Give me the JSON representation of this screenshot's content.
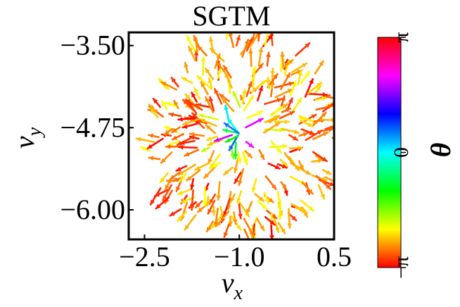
{
  "chart_data": {
    "type": "quiver",
    "title": "SGTM",
    "xlabel_main": "v",
    "xlabel_sub": "x",
    "ylabel_main": "v",
    "ylabel_sub": "y",
    "xlim": [
      -2.75,
      0.5
    ],
    "ylim": [
      -6.45,
      -3.3
    ],
    "xticks": [
      -2.5,
      -1.0,
      0.5
    ],
    "xtick_labels": [
      "−2.5",
      "−1.0",
      "0.5"
    ],
    "yticks": [
      -3.5,
      -4.75,
      -6.0
    ],
    "ytick_labels": [
      "−3.50",
      "−4.75",
      "−6.00"
    ],
    "field": {
      "center": [
        -1.0,
        -4.85
      ],
      "radius": 1.55,
      "arrow_count": 300,
      "direction": "radially outward with jitter",
      "seed": 7
    },
    "colorbar": {
      "label": "θ",
      "range": [
        -3.14159,
        3.14159
      ],
      "ticks": [
        -3.14159,
        0,
        3.14159
      ],
      "tick_labels": [
        "−π",
        "0",
        "π"
      ],
      "colormap": "hsv",
      "colors": [
        "#ff0000",
        "#ffff00",
        "#00ff00",
        "#00ffff",
        "#0000ff",
        "#ff00ff"
      ]
    }
  }
}
